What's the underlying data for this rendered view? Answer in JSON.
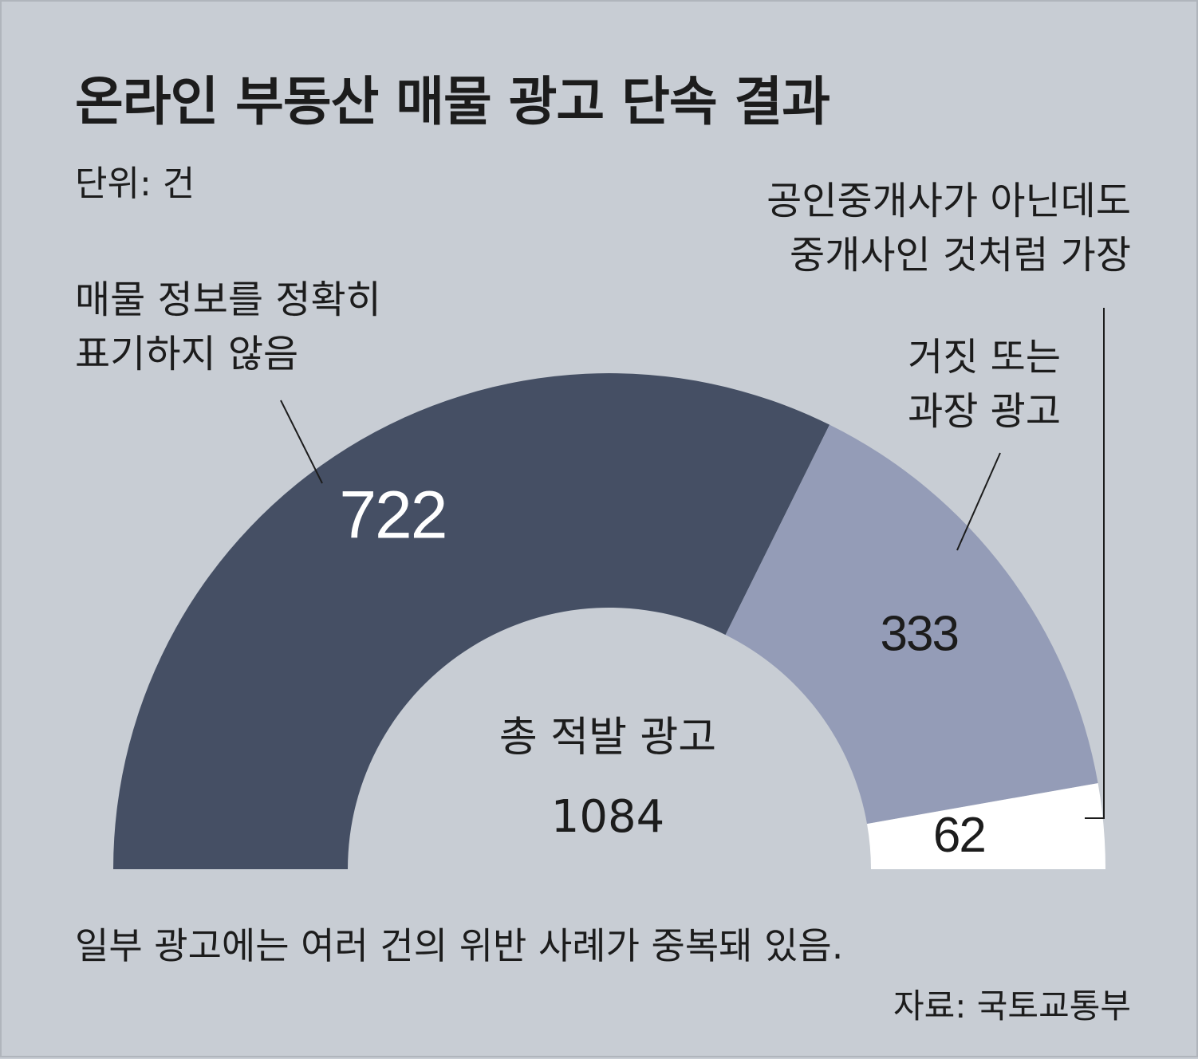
{
  "title": "온라인 부동산 매물 광고 단속 결과",
  "unit": "단위: 건",
  "note": "일부 광고에는 여러 건의 위반 사례가 중복돼 있음.",
  "source": "자료: 국토교통부",
  "chart_data": {
    "type": "pie",
    "subtype": "semi-donut",
    "center_label": "총 적발 광고",
    "center_total": "1084",
    "categories": [
      [
        "매물 정보를 정확히",
        "표기하지 않음"
      ],
      [
        "거짓 또는",
        "과장 광고"
      ],
      [
        "공인중개사가 아닌데도",
        "중개사인 것처럼 가장"
      ]
    ],
    "values": [
      722,
      333,
      62
    ],
    "colors": [
      "#454f64",
      "#949cb7",
      "#ffffff"
    ],
    "label_colors": [
      "#ffffff",
      "#1c1c1c",
      "#1c1c1c"
    ]
  }
}
